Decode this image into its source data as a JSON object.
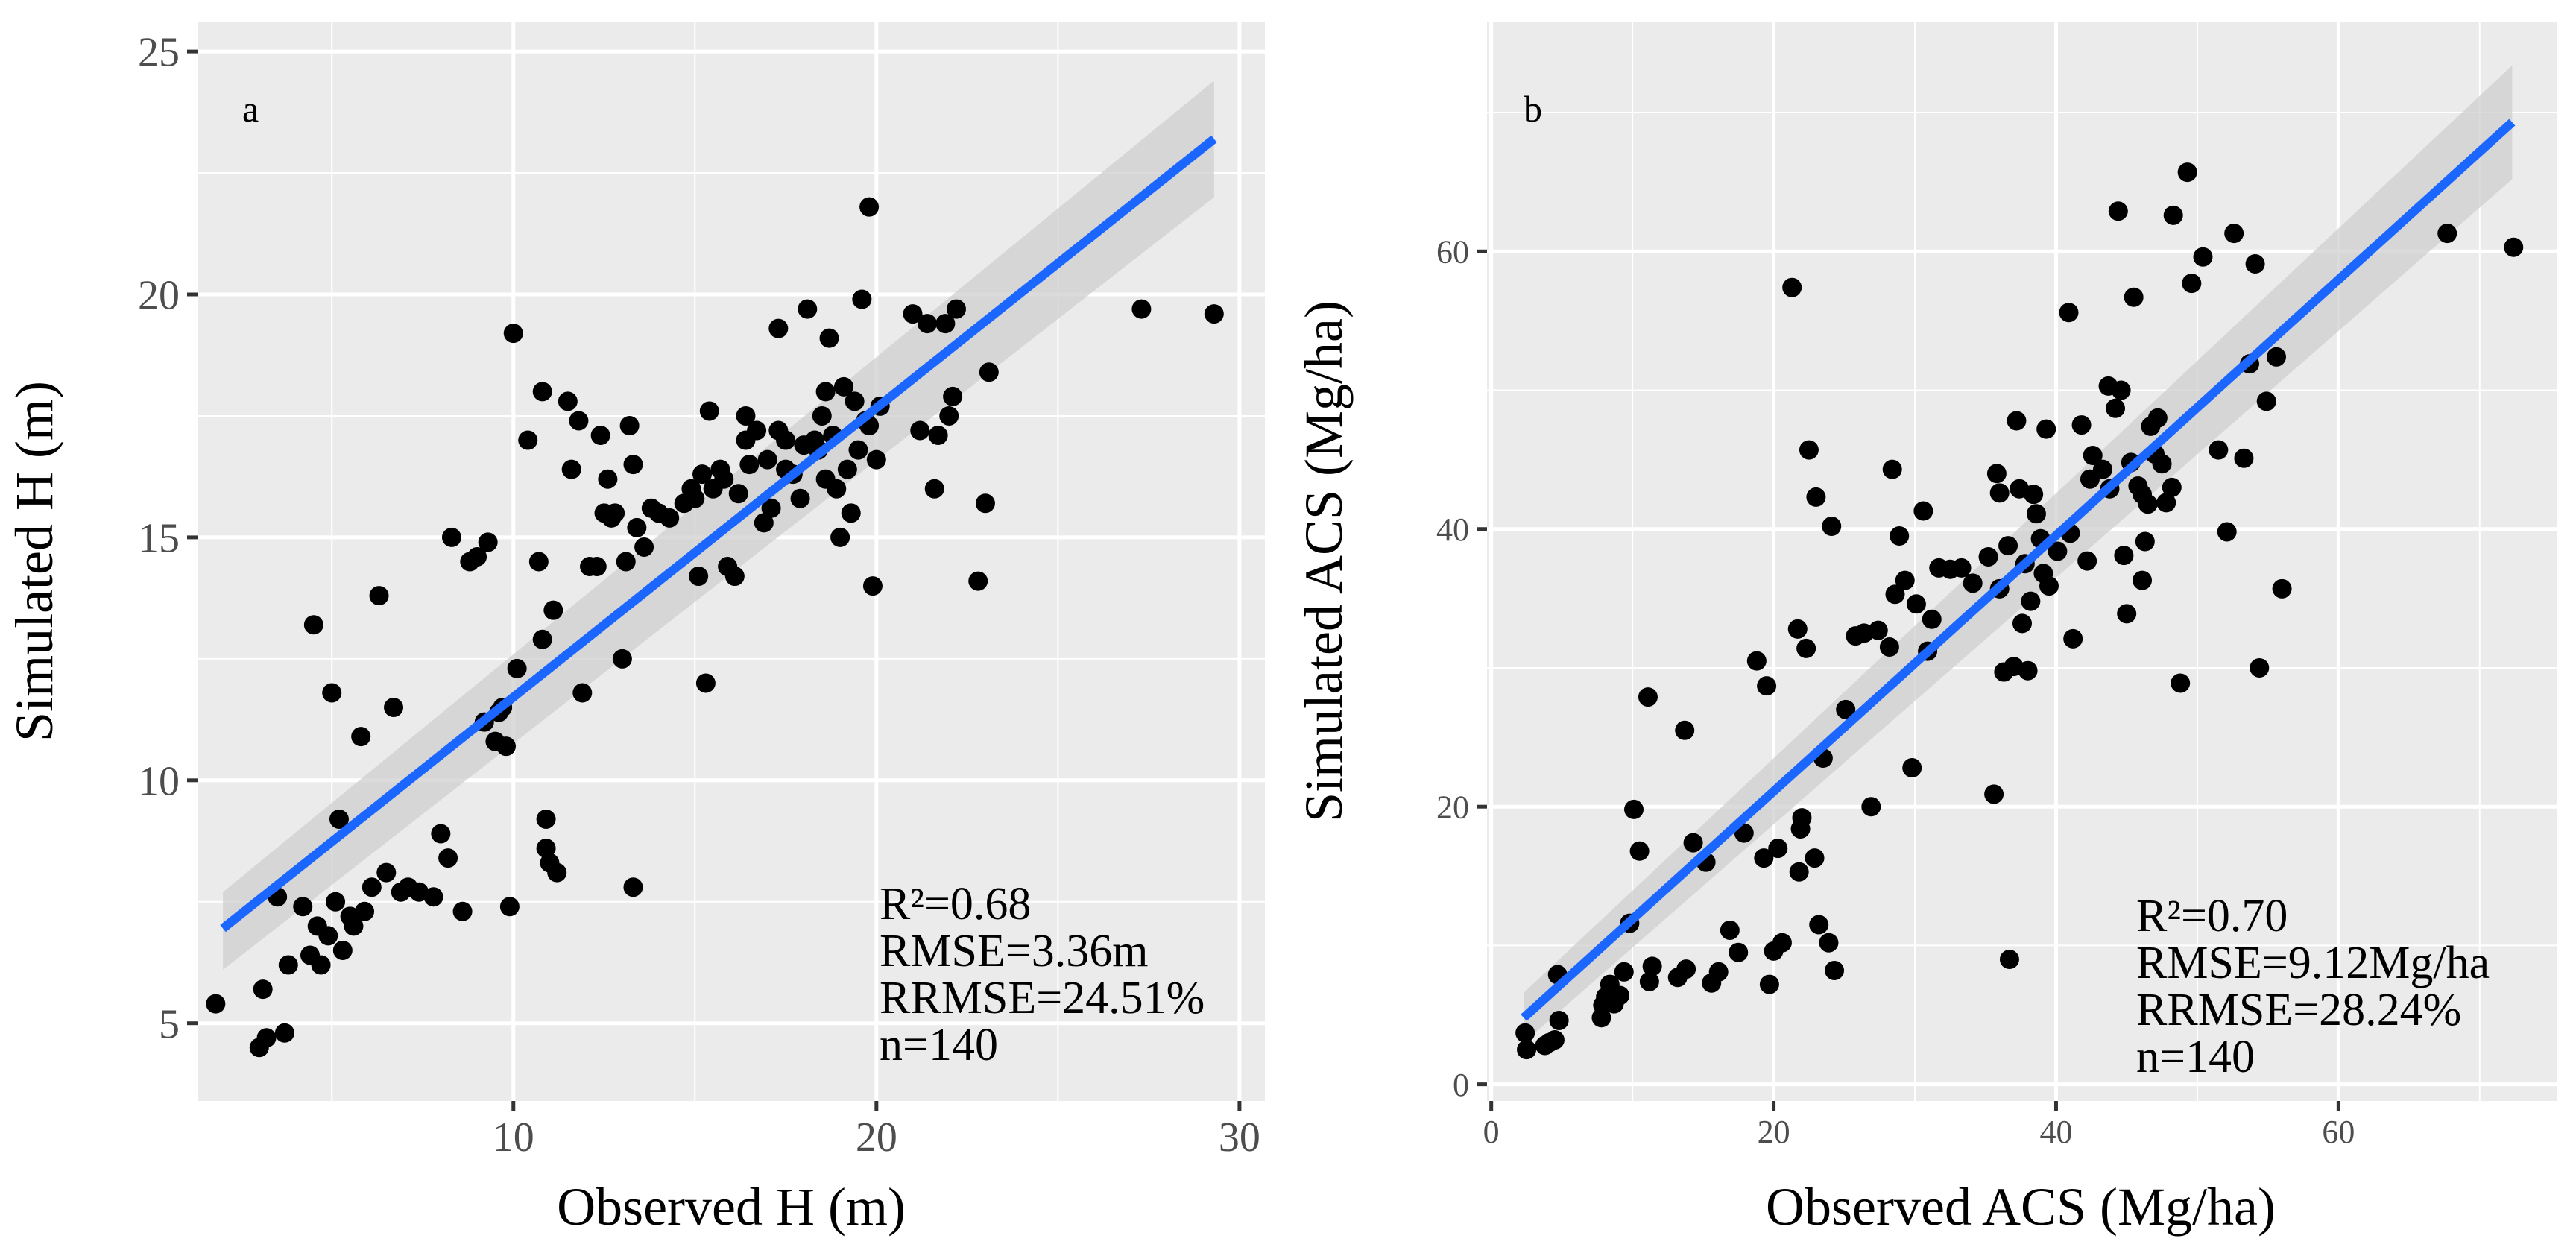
{
  "chart_data": [
    {
      "type": "scatter",
      "panel": "a",
      "xlabel": "Observed H (m)",
      "ylabel": "Simulated H (m)",
      "xlim": [
        1.3,
        30.7
      ],
      "ylim": [
        3.4,
        25.6
      ],
      "xticks": [
        10,
        20,
        30
      ],
      "yticks": [
        5,
        10,
        15,
        20,
        25
      ],
      "grid": true,
      "regression": {
        "x": [
          2,
          29.3
        ],
        "y": [
          6.95,
          23.2
        ],
        "band_low": [
          6.1,
          22.0
        ],
        "band_high": [
          7.7,
          24.4
        ],
        "color": "#1a66ff"
      },
      "stats": [
        "R²=0.68",
        "RMSE=3.36m",
        "RRMSE=24.51%",
        "n=140"
      ],
      "points": [
        [
          1.8,
          5.4
        ],
        [
          3,
          4.5
        ],
        [
          3.1,
          5.7
        ],
        [
          3.2,
          4.7
        ],
        [
          3.5,
          7.6
        ],
        [
          3.7,
          4.8
        ],
        [
          3.8,
          6.2
        ],
        [
          4.2,
          7.4
        ],
        [
          4.5,
          13.2
        ],
        [
          4.6,
          7
        ],
        [
          4.7,
          6.2
        ],
        [
          4.9,
          6.8
        ],
        [
          5,
          11.8
        ],
        [
          5.1,
          7.5
        ],
        [
          5.2,
          9.2
        ],
        [
          5.3,
          6.5
        ],
        [
          5.5,
          7.2
        ],
        [
          5.8,
          10.9
        ],
        [
          5.9,
          7.3
        ],
        [
          6.1,
          7.8
        ],
        [
          6.3,
          13.8
        ],
        [
          6.5,
          8.1
        ],
        [
          6.7,
          11.5
        ],
        [
          7.1,
          7.8
        ],
        [
          7.4,
          7.7
        ],
        [
          8,
          8.9
        ],
        [
          8.2,
          8.4
        ],
        [
          8.3,
          15
        ],
        [
          8.6,
          7.3
        ],
        [
          8.8,
          14.5
        ],
        [
          9,
          14.6
        ],
        [
          9.2,
          11.2
        ],
        [
          9.3,
          14.9
        ],
        [
          9.5,
          10.8
        ],
        [
          9.7,
          11.5
        ],
        [
          9.8,
          10.7
        ],
        [
          9.9,
          7.4
        ],
        [
          10,
          19.2
        ],
        [
          10.1,
          12.3
        ],
        [
          10.4,
          17
        ],
        [
          10.7,
          14.5
        ],
        [
          10.8,
          18
        ],
        [
          10.8,
          12.9
        ],
        [
          10.9,
          9.2
        ],
        [
          10.9,
          8.6
        ],
        [
          11,
          8.3
        ],
        [
          11.1,
          13.5
        ],
        [
          11.2,
          8.1
        ],
        [
          11.5,
          17.8
        ],
        [
          11.8,
          17.4
        ],
        [
          11.9,
          11.8
        ],
        [
          12.1,
          14.4
        ],
        [
          12.3,
          14.4
        ],
        [
          12.4,
          17.1
        ],
        [
          12.5,
          15.5
        ],
        [
          12.6,
          16.2
        ],
        [
          12.8,
          15.5
        ],
        [
          13,
          12.5
        ],
        [
          13.1,
          14.5
        ],
        [
          13.2,
          17.3
        ],
        [
          13.3,
          16.5
        ],
        [
          13.3,
          7.8
        ],
        [
          13.4,
          15.2
        ],
        [
          13.6,
          14.8
        ],
        [
          13.8,
          15.6
        ],
        [
          14,
          15.5
        ],
        [
          14.3,
          15.4
        ],
        [
          14.7,
          15.7
        ],
        [
          15,
          15.8
        ],
        [
          15.1,
          14.2
        ],
        [
          15.2,
          16.3
        ],
        [
          15.3,
          12
        ],
        [
          15.4,
          17.6
        ],
        [
          15.5,
          16
        ],
        [
          15.7,
          16.4
        ],
        [
          15.9,
          14.4
        ],
        [
          16.1,
          14.2
        ],
        [
          16.2,
          15.9
        ],
        [
          16.4,
          17.5
        ],
        [
          16.5,
          16.5
        ],
        [
          16.7,
          17.2
        ],
        [
          16.9,
          15.3
        ],
        [
          17,
          16.6
        ],
        [
          17.1,
          15.6
        ],
        [
          17.3,
          17.2
        ],
        [
          17.5,
          17
        ],
        [
          17.7,
          16.3
        ],
        [
          17.9,
          15.8
        ],
        [
          18.1,
          19.7
        ],
        [
          18.3,
          17
        ],
        [
          18.4,
          16.8
        ],
        [
          18.5,
          17.5
        ],
        [
          18.6,
          16.2
        ],
        [
          18.7,
          19.1
        ],
        [
          18.8,
          17.1
        ],
        [
          18.9,
          16
        ],
        [
          19,
          15
        ],
        [
          19.2,
          16.4
        ],
        [
          19.3,
          15.5
        ],
        [
          19.4,
          17.8
        ],
        [
          19.5,
          16.8
        ],
        [
          19.6,
          19.9
        ],
        [
          19.8,
          17.3
        ],
        [
          19.8,
          21.8
        ],
        [
          19.9,
          14
        ],
        [
          20,
          16.6
        ],
        [
          20.1,
          17.7
        ],
        [
          21,
          19.6
        ],
        [
          21.2,
          17.2
        ],
        [
          21.4,
          19.4
        ],
        [
          21.6,
          16
        ],
        [
          21.7,
          17.1
        ],
        [
          21.9,
          19.4
        ],
        [
          22,
          17.5
        ],
        [
          22.1,
          17.9
        ],
        [
          22.2,
          19.7
        ],
        [
          22.8,
          14.1
        ],
        [
          23,
          15.7
        ],
        [
          23.1,
          18.4
        ],
        [
          27.3,
          19.7
        ],
        [
          29.3,
          19.6
        ],
        [
          17.3,
          19.3
        ],
        [
          18.6,
          18
        ],
        [
          19.1,
          18.1
        ],
        [
          15.8,
          16.2
        ],
        [
          14.9,
          16
        ],
        [
          16.4,
          17
        ],
        [
          12.7,
          15.4
        ],
        [
          11.6,
          16.4
        ],
        [
          17.5,
          16.4
        ],
        [
          18,
          16.9
        ],
        [
          19.7,
          17.4
        ],
        [
          9.6,
          11.4
        ],
        [
          7.8,
          7.6
        ],
        [
          6.9,
          7.7
        ],
        [
          5.6,
          7
        ],
        [
          4.4,
          6.4
        ]
      ]
    },
    {
      "type": "scatter",
      "panel": "b",
      "xlabel": "Observed ACS (Mg/ha)",
      "ylabel": "Simulated ACS (Mg/ha)",
      "xlim": [
        -0.3,
        75.5
      ],
      "ylim": [
        -1.2,
        76.5
      ],
      "xticks": [
        0,
        20,
        40,
        60
      ],
      "yticks": [
        0,
        20,
        40,
        60
      ],
      "grid": true,
      "regression": {
        "x": [
          2.3,
          72.3
        ],
        "y": [
          4.8,
          69.3
        ],
        "band_low": [
          3.0,
          65.2
        ],
        "band_high": [
          6.6,
          73.4
        ],
        "color": "#1a66ff"
      },
      "stats": [
        "R²=0.70",
        "RMSE=9.12Mg/ha",
        "RRMSE=28.24%",
        "n=140"
      ],
      "points": [
        [
          2.4,
          3.7
        ],
        [
          2.5,
          2.5
        ],
        [
          3.8,
          2.8
        ],
        [
          4.5,
          3.2
        ],
        [
          4.7,
          7.9
        ],
        [
          4.8,
          4.6
        ],
        [
          7.8,
          4.8
        ],
        [
          7.9,
          5.7
        ],
        [
          8.1,
          6.3
        ],
        [
          8.4,
          7.2
        ],
        [
          8.7,
          5.8
        ],
        [
          9.4,
          8.1
        ],
        [
          9.8,
          11.6
        ],
        [
          10.1,
          19.8
        ],
        [
          10.5,
          16.8
        ],
        [
          11.1,
          27.9
        ],
        [
          11.2,
          7.4
        ],
        [
          11.4,
          8.5
        ],
        [
          13.7,
          25.5
        ],
        [
          13.8,
          8.3
        ],
        [
          14.3,
          17.4
        ],
        [
          15.6,
          7.3
        ],
        [
          16.1,
          8.1
        ],
        [
          16.9,
          11.1
        ],
        [
          17.5,
          9.5
        ],
        [
          17.9,
          18.1
        ],
        [
          18.8,
          30.5
        ],
        [
          19.3,
          16.3
        ],
        [
          19.5,
          28.7
        ],
        [
          19.7,
          7.2
        ],
        [
          20,
          9.6
        ],
        [
          20.3,
          17
        ],
        [
          20.6,
          10.2
        ],
        [
          21.3,
          57.4
        ],
        [
          21.7,
          32.8
        ],
        [
          21.9,
          18.4
        ],
        [
          22,
          19.2
        ],
        [
          22.3,
          31.4
        ],
        [
          22.5,
          45.7
        ],
        [
          22.9,
          16.3
        ],
        [
          23,
          42.3
        ],
        [
          23.2,
          11.5
        ],
        [
          23.5,
          23.5
        ],
        [
          23.9,
          10.2
        ],
        [
          24.1,
          40.2
        ],
        [
          24.3,
          8.2
        ],
        [
          25.1,
          27
        ],
        [
          25.8,
          32.3
        ],
        [
          26.9,
          20
        ],
        [
          27.4,
          32.7
        ],
        [
          28.2,
          31.5
        ],
        [
          28.4,
          44.3
        ],
        [
          28.6,
          35.3
        ],
        [
          28.9,
          39.5
        ],
        [
          29.3,
          36.3
        ],
        [
          29.8,
          22.8
        ],
        [
          30.1,
          34.6
        ],
        [
          30.6,
          41.3
        ],
        [
          30.9,
          31.2
        ],
        [
          31.2,
          33.5
        ],
        [
          31.7,
          37.2
        ],
        [
          32.5,
          37.1
        ],
        [
          35.6,
          20.9
        ],
        [
          35.8,
          44
        ],
        [
          36,
          42.6
        ],
        [
          36,
          35.7
        ],
        [
          36.3,
          29.7
        ],
        [
          36.6,
          38.8
        ],
        [
          36.7,
          9
        ],
        [
          37,
          30.1
        ],
        [
          37.2,
          47.8
        ],
        [
          37.4,
          42.9
        ],
        [
          37.6,
          33.2
        ],
        [
          37.8,
          37.5
        ],
        [
          38,
          29.8
        ],
        [
          38.2,
          34.8
        ],
        [
          38.4,
          42.5
        ],
        [
          38.6,
          41.1
        ],
        [
          38.9,
          39.3
        ],
        [
          39.1,
          36.8
        ],
        [
          39.3,
          47.2
        ],
        [
          40.9,
          55.6
        ],
        [
          41,
          39.7
        ],
        [
          41.2,
          32.1
        ],
        [
          41.8,
          47.5
        ],
        [
          42.2,
          37.7
        ],
        [
          42.4,
          43.6
        ],
        [
          42.6,
          45.3
        ],
        [
          43.3,
          44.3
        ],
        [
          43.8,
          42.9
        ],
        [
          44.2,
          48.7
        ],
        [
          44.4,
          62.9
        ],
        [
          44.6,
          50
        ],
        [
          44.8,
          38.1
        ],
        [
          45,
          33.9
        ],
        [
          45.3,
          44.8
        ],
        [
          45.5,
          56.7
        ],
        [
          45.8,
          43.1
        ],
        [
          46.1,
          36.3
        ],
        [
          46.3,
          39.1
        ],
        [
          46.5,
          41.8
        ],
        [
          46.7,
          47.4
        ],
        [
          47,
          45.4
        ],
        [
          47.2,
          48
        ],
        [
          47.5,
          44.7
        ],
        [
          47.8,
          41.9
        ],
        [
          48.2,
          43
        ],
        [
          48.3,
          62.6
        ],
        [
          48.8,
          28.9
        ],
        [
          49.3,
          65.7
        ],
        [
          49.6,
          57.7
        ],
        [
          50.4,
          59.6
        ],
        [
          51.5,
          45.7
        ],
        [
          52.1,
          39.8
        ],
        [
          52.6,
          61.3
        ],
        [
          53.3,
          45.1
        ],
        [
          53.7,
          51.9
        ],
        [
          54.1,
          59.1
        ],
        [
          54.4,
          30
        ],
        [
          54.9,
          49.2
        ],
        [
          55.6,
          52.4
        ],
        [
          56,
          35.7
        ],
        [
          67.7,
          61.3
        ],
        [
          72.4,
          60.3
        ],
        [
          46.1,
          42.5
        ],
        [
          43.7,
          50.3
        ],
        [
          40.1,
          38.4
        ],
        [
          39.5,
          35.9
        ],
        [
          33.3,
          37.2
        ],
        [
          34.1,
          36.1
        ],
        [
          35.2,
          38
        ],
        [
          26.4,
          32.5
        ],
        [
          21.8,
          15.3
        ],
        [
          13.2,
          7.7
        ],
        [
          15.2,
          16
        ],
        [
          9.1,
          6.4
        ],
        [
          4.1,
          3
        ]
      ]
    }
  ]
}
